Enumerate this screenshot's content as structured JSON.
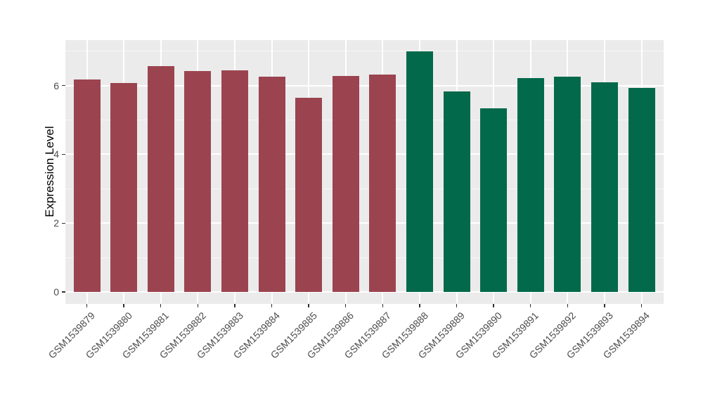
{
  "chart_data": {
    "type": "bar",
    "title": "",
    "xlabel": "",
    "ylabel": "Expression Level",
    "categories": [
      "GSM1539879",
      "GSM1539880",
      "GSM1539881",
      "GSM1539882",
      "GSM1539883",
      "GSM1539884",
      "GSM1539885",
      "GSM1539886",
      "GSM1539887",
      "GSM1539888",
      "GSM1539889",
      "GSM1539890",
      "GSM1539891",
      "GSM1539892",
      "GSM1539893",
      "GSM1539894"
    ],
    "values": [
      6.18,
      6.08,
      6.56,
      6.42,
      6.45,
      6.25,
      5.65,
      6.28,
      6.32,
      7.0,
      5.83,
      5.33,
      6.22,
      6.26,
      6.1,
      5.93
    ],
    "bar_colors": [
      "#9B4450",
      "#9B4450",
      "#9B4450",
      "#9B4450",
      "#9B4450",
      "#9B4450",
      "#9B4450",
      "#9B4450",
      "#9B4450",
      "#02694A",
      "#02694A",
      "#02694A",
      "#02694A",
      "#02694A",
      "#02694A",
      "#02694A"
    ],
    "group_colors": {
      "maroon_group": "#9B4450",
      "green_group": "#02694A"
    },
    "ylim": [
      0,
      7.35
    ],
    "yticks": [
      0,
      2,
      4,
      6
    ],
    "yticks_minor": [
      1,
      3,
      5,
      7
    ],
    "grid": "horizontal major+minor, vertical major per category; white on gray panel",
    "legend": "none",
    "panel_bg": "#EBEBEB",
    "grid_color": "#FFFFFF",
    "tick_label_color": "#4D4D4D",
    "tick_mark_color": "#333333"
  }
}
